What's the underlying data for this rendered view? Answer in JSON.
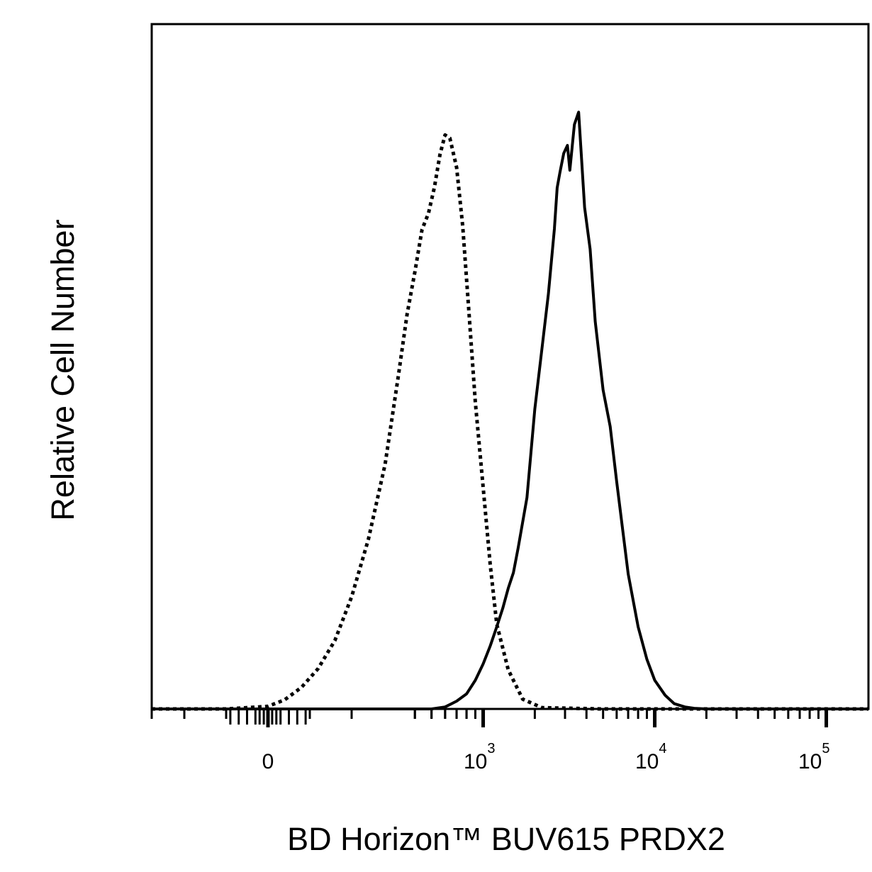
{
  "chart_data": {
    "type": "line",
    "title": "",
    "xlabel": "BD Horizon™ BUV615 PRDX2",
    "ylabel": "Relative Cell Number",
    "x_scale": "biexponential",
    "xlim": [
      -400,
      200000
    ],
    "ylim": [
      0,
      100
    ],
    "y_ticks": false,
    "grid": false,
    "legend": "none",
    "x_tick_labels": [
      {
        "base": "0",
        "exp": "",
        "value": 0
      },
      {
        "base": "10",
        "exp": "3",
        "value": 1000
      },
      {
        "base": "10",
        "exp": "4",
        "value": 10000
      },
      {
        "base": "10",
        "exp": "5",
        "value": 100000
      }
    ],
    "series": [
      {
        "style": "dotted",
        "color": "#000000",
        "x": [
          -400,
          -100,
          0,
          40,
          80,
          120,
          160,
          200,
          240,
          280,
          320,
          360,
          400,
          440,
          480,
          520,
          560,
          600,
          640,
          700,
          760,
          820,
          900,
          1000,
          1100,
          1200,
          1400,
          1700,
          2200,
          5000,
          200000
        ],
        "y": [
          0,
          0,
          0.4,
          1.4,
          3.3,
          6.2,
          10.5,
          17.2,
          26,
          37.5,
          51,
          60.5,
          67,
          73.5,
          76,
          80,
          85,
          88,
          87.5,
          83,
          74,
          62,
          47,
          34,
          22,
          13,
          6,
          1.5,
          0.2,
          0,
          0
        ]
      },
      {
        "style": "solid",
        "color": "#000000",
        "x": [
          -400,
          300,
          500,
          600,
          700,
          800,
          900,
          1000,
          1100,
          1200,
          1300,
          1400,
          1500,
          1600,
          1800,
          2000,
          2200,
          2400,
          2600,
          2700,
          2800,
          2950,
          3100,
          3200,
          3400,
          3600,
          3900,
          4200,
          4500,
          5000,
          5500,
          6000,
          7000,
          8000,
          9000,
          10000,
          11500,
          13000,
          15000,
          17000,
          20000,
          200000
        ],
        "y": [
          0,
          0,
          0,
          0.3,
          1.2,
          2.3,
          4.4,
          6.9,
          9.7,
          12.6,
          15.4,
          18.5,
          20.9,
          24.7,
          32.4,
          46,
          55.2,
          63.6,
          73.6,
          79.9,
          82.2,
          85.2,
          86.4,
          82.6,
          89.6,
          91.5,
          76.9,
          70.5,
          59.4,
          48.9,
          43.3,
          34.9,
          20.7,
          12.6,
          7.6,
          4.4,
          2.1,
          0.8,
          0.3,
          0.1,
          0,
          0
        ]
      }
    ]
  }
}
